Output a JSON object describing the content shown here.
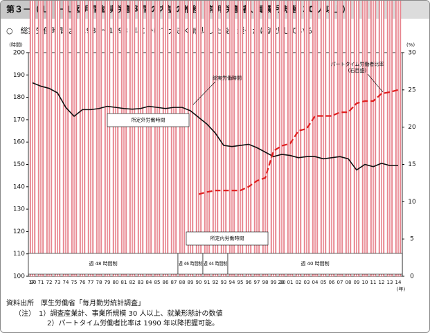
{
  "chart_data": {
    "type": "bar",
    "figure_no": "第３－（１）－１図",
    "title": "月間総実労働時間の内訳の推移（常用労働者、事業所規模 30 人以上）",
    "subtitle": "○　総実労働時間は、1988～1993 年にかけて大きく減少した後、緩やかに減少している。",
    "y_label": "(時間)",
    "y2_label": "(%)",
    "x_label": "(年)",
    "categories": [
      "1970",
      "71",
      "72",
      "73",
      "74",
      "75",
      "76",
      "77",
      "78",
      "79",
      "80",
      "81",
      "82",
      "83",
      "84",
      "85",
      "86",
      "87",
      "88",
      "89",
      "90",
      "91",
      "92",
      "93",
      "94",
      "95",
      "96",
      "97",
      "98",
      "99",
      "2000",
      "01",
      "02",
      "03",
      "04",
      "05",
      "06",
      "07",
      "08",
      "09",
      "10",
      "11",
      "12",
      "13",
      "14"
    ],
    "series": [
      {
        "name": "所定内労働時間",
        "color": "#e05a68",
        "values": [
          170,
          169.5,
          169,
          167,
          163.5,
          163,
          163,
          163,
          163,
          163,
          162.5,
          162,
          162,
          162,
          162.5,
          161.5,
          161,
          161,
          160.5,
          158.5,
          155.5,
          153.5,
          152,
          149,
          148,
          148,
          148.5,
          147.5,
          146.5,
          142.5,
          143.5,
          143,
          142,
          142.5,
          141.5,
          141,
          141,
          141,
          140,
          137,
          137.5,
          137,
          138,
          136.5,
          136
        ]
      },
      {
        "name": "所定外労働時間",
        "color": "#2f8fd0",
        "values": [
          16.5,
          15.5,
          15,
          15,
          12,
          8.5,
          11.5,
          11.5,
          12,
          13,
          13,
          13,
          12.7,
          13,
          13.5,
          14,
          14,
          14.5,
          15,
          15.5,
          15.5,
          14.5,
          12,
          9.5,
          10,
          10.5,
          10.5,
          10,
          9,
          11,
          11,
          11,
          11,
          11,
          12,
          11.5,
          12,
          12.5,
          12.5,
          10.5,
          12.5,
          12,
          12.5,
          13,
          13.5
        ]
      },
      {
        "name": "総実労働時間",
        "type": "line",
        "color": "#111111",
        "values": [
          186.5,
          185,
          184,
          182,
          175.5,
          171.5,
          174.5,
          174.5,
          175,
          176,
          175.5,
          175,
          174.7,
          175,
          176,
          175.5,
          175,
          175.5,
          175.5,
          174,
          171,
          168,
          164,
          158.5,
          158,
          158.5,
          159,
          157.5,
          155.5,
          153.5,
          154.5,
          154,
          153,
          153.5,
          153.5,
          152.5,
          153,
          153.5,
          152.5,
          147.5,
          150,
          149,
          150.5,
          149.5,
          149.5
        ]
      },
      {
        "name": "パートタイム労働者比率",
        "name_note": "(右目盛)",
        "type": "line",
        "axis": "y2",
        "color": "#e01f1f",
        "dashed": true,
        "values": [
          null,
          null,
          null,
          null,
          null,
          null,
          null,
          null,
          null,
          null,
          null,
          null,
          null,
          null,
          null,
          null,
          null,
          null,
          null,
          null,
          11.0,
          11.3,
          11.5,
          11.5,
          11.5,
          11.5,
          12.0,
          12.8,
          13.2,
          16.8,
          17.5,
          17.8,
          19.5,
          19.8,
          21.5,
          21.5,
          21.5,
          22.0,
          22.0,
          23.2,
          23.5,
          23.5,
          24.5,
          24.7,
          25.0
        ]
      }
    ],
    "regimes": [
      "週 48 時間制",
      "週 46 時間制",
      "週 44 時間制",
      "週 40 時間制"
    ],
    "ylim": [
      100,
      200
    ],
    "yticks": [
      100,
      110,
      120,
      130,
      140,
      150,
      160,
      170,
      180,
      190,
      200
    ],
    "y2lim": [
      0,
      30
    ],
    "y2ticks": [
      0,
      5,
      10,
      15,
      20,
      25,
      30
    ],
    "notes": [
      "資料出所　厚生労働省「毎月勤労統計調査」",
      "（注）　1）調査産業計、事業所規模 30 人以上、就業形態計の数値",
      "2）パートタイム労働者比率は 1990 年以降把握可能。"
    ]
  }
}
